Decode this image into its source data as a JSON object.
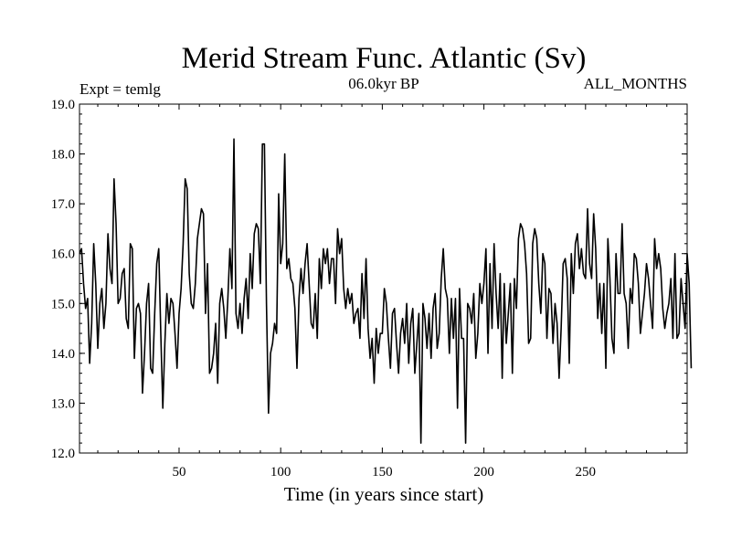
{
  "chart_data": {
    "type": "line",
    "title": "Merid Stream Func. Atlantic (Sv)",
    "subtitle": "06.0kyr BP",
    "left_label": "Expt = temlg",
    "right_label": "ALL_MONTHS",
    "xlabel": "Time (in years since start)",
    "ylabel": "",
    "xlim": [
      1,
      300
    ],
    "ylim": [
      12.0,
      19.0
    ],
    "xticks": [
      50,
      100,
      150,
      200,
      250
    ],
    "yticks": [
      12.0,
      13.0,
      14.0,
      15.0,
      16.0,
      17.0,
      18.0,
      19.0
    ],
    "grid": false,
    "series": [
      {
        "name": "Merid Stream Func. Atlantic",
        "x_start": 1,
        "x_step": 1,
        "values": [
          16.0,
          16.1,
          15.4,
          14.9,
          15.1,
          13.8,
          14.6,
          16.2,
          15.4,
          14.1,
          15.0,
          15.3,
          14.5,
          15.0,
          16.4,
          15.7,
          15.4,
          17.5,
          16.6,
          15.0,
          15.1,
          15.6,
          15.7,
          14.7,
          14.5,
          16.2,
          16.1,
          13.9,
          14.9,
          15.0,
          14.8,
          13.2,
          14.0,
          15.0,
          15.4,
          13.7,
          13.6,
          14.8,
          15.8,
          16.1,
          14.4,
          12.9,
          14.2,
          15.2,
          14.6,
          15.1,
          15.0,
          14.4,
          13.7,
          14.8,
          15.3,
          16.2,
          17.5,
          17.3,
          15.6,
          15.0,
          14.9,
          15.4,
          16.3,
          16.6,
          16.9,
          16.8,
          14.8,
          15.8,
          13.6,
          13.7,
          14.0,
          14.6,
          13.4,
          15.0,
          15.3,
          14.9,
          14.3,
          15.1,
          16.1,
          15.3,
          18.3,
          14.8,
          14.5,
          15.0,
          14.4,
          15.1,
          15.5,
          14.7,
          16.0,
          15.3,
          16.4,
          16.6,
          16.5,
          15.4,
          18.2,
          18.2,
          15.0,
          12.8,
          14.0,
          14.2,
          14.6,
          14.4,
          17.2,
          15.8,
          16.2,
          18.0,
          15.7,
          15.9,
          15.5,
          15.4,
          14.9,
          13.7,
          15.1,
          15.7,
          15.2,
          15.8,
          16.2,
          15.4,
          14.6,
          14.5,
          15.2,
          14.3,
          15.9,
          15.3,
          16.1,
          15.8,
          16.1,
          15.4,
          15.9,
          15.9,
          15.0,
          16.5,
          16.0,
          16.3,
          15.3,
          14.9,
          15.3,
          15.0,
          15.2,
          14.6,
          14.8,
          14.9,
          14.3,
          15.6,
          14.7,
          15.9,
          14.5,
          13.9,
          14.3,
          13.4,
          14.5,
          14.0,
          14.4,
          14.4,
          15.3,
          15.0,
          14.3,
          13.7,
          14.8,
          14.9,
          14.2,
          13.6,
          14.4,
          14.7,
          14.2,
          15.0,
          13.8,
          14.6,
          14.9,
          13.6,
          14.2,
          14.8,
          12.2,
          15.0,
          14.7,
          14.1,
          14.8,
          13.9,
          14.9,
          15.2,
          14.1,
          14.4,
          15.5,
          16.1,
          15.3,
          15.1,
          14.0,
          15.1,
          14.3,
          15.1,
          12.9,
          15.3,
          14.3,
          14.3,
          12.2,
          15.0,
          14.9,
          14.6,
          15.2,
          13.9,
          14.4,
          15.4,
          15.0,
          15.4,
          16.1,
          14.0,
          15.8,
          14.5,
          16.2,
          15.2,
          14.5,
          15.6,
          13.5,
          15.4,
          14.2,
          14.8,
          15.4,
          13.6,
          15.5,
          14.9,
          16.3,
          16.6,
          16.5,
          16.2,
          15.6,
          14.2,
          14.3,
          16.2,
          16.5,
          16.3,
          15.4,
          14.8,
          16.0,
          15.8,
          14.3,
          15.3,
          15.2,
          14.2,
          15.0,
          14.6,
          13.5,
          14.5,
          15.8,
          15.9,
          15.5,
          13.8,
          16.0,
          15.2,
          16.2,
          16.4,
          15.7,
          16.1,
          15.6,
          15.5,
          16.9,
          15.8,
          15.5,
          16.8,
          16.1,
          14.7,
          15.4,
          14.4,
          15.4,
          13.7,
          16.3,
          15.5,
          14.3,
          14.0,
          16.0,
          15.2,
          15.2,
          16.6,
          15.2,
          15.0,
          14.1,
          15.3,
          15.0,
          16.0,
          15.9,
          15.4,
          14.4,
          14.8,
          15.2,
          15.8,
          15.5,
          15.0,
          14.5,
          16.3,
          15.7,
          16.0,
          15.7,
          14.9,
          14.5,
          14.8,
          15.0,
          15.5,
          14.3,
          16.0,
          14.3,
          14.4,
          15.5,
          15.0,
          14.5,
          16.0,
          15.4,
          13.7
        ]
      }
    ]
  }
}
